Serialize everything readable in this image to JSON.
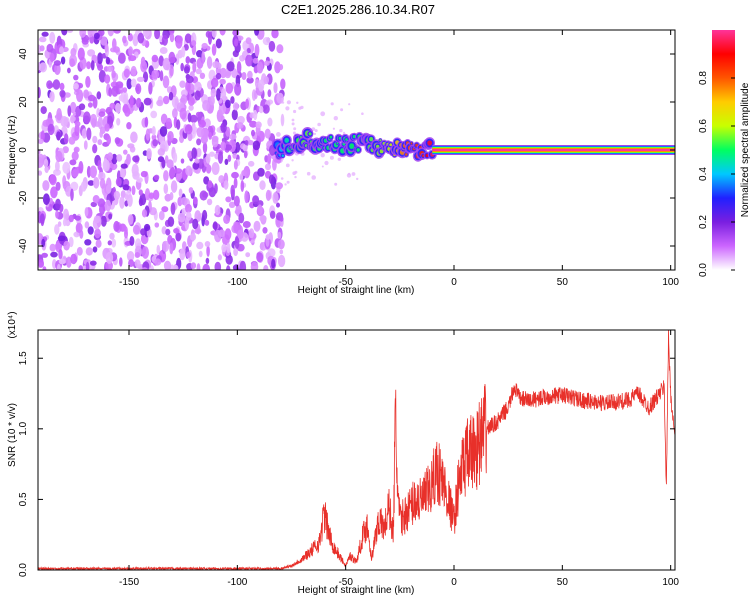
{
  "page_title": "C2E1.2025.286.10.34.R07",
  "colors": {
    "snr_line": "#e8302a",
    "spec_band": "#c8102e",
    "scatter": "#7a1fe0"
  },
  "chart_data": [
    {
      "type": "heatmap",
      "title": "C2E1.2025.286.10.34.R07",
      "xlabel": "Height of straight line (km)",
      "ylabel": "Frequency (Hz)",
      "xlim": [
        -192,
        102
      ],
      "ylim": [
        -50,
        50
      ],
      "xticks": [
        -150,
        -100,
        -50,
        0,
        50,
        100
      ],
      "yticks": [
        -40,
        -20,
        0,
        20,
        40
      ],
      "colorbar": {
        "label": "Normalized spectral amplitude",
        "range": [
          0.0,
          1.0
        ],
        "ticks": [
          "0.0",
          "0.2",
          "0.4",
          "0.6",
          "0.8"
        ],
        "colormap": [
          "#ffffff",
          "#cc66ff",
          "#7a1fe0",
          "#2020ff",
          "#00c8ff",
          "#00ff60",
          "#c8ff00",
          "#ffcc00",
          "#ff5500",
          "#ff0000",
          "#ff3399"
        ]
      },
      "noise_region": {
        "x_range": [
          -192,
          -82
        ],
        "level": 0.15
      },
      "ridge": [
        {
          "x": -82,
          "f": -1,
          "amp": 0.35
        },
        {
          "x": -75,
          "f": 2,
          "amp": 0.5
        },
        {
          "x": -68,
          "f": 4,
          "amp": 0.55
        },
        {
          "x": -60,
          "f": 3,
          "amp": 0.5
        },
        {
          "x": -52,
          "f": 2,
          "amp": 0.5
        },
        {
          "x": -45,
          "f": 3,
          "amp": 0.5
        },
        {
          "x": -38,
          "f": 2,
          "amp": 0.55
        },
        {
          "x": -30,
          "f": 1,
          "amp": 0.6
        },
        {
          "x": -22,
          "f": 0.5,
          "amp": 0.8
        },
        {
          "x": -15,
          "f": 0.5,
          "amp": 0.85
        },
        {
          "x": -10,
          "f": 0,
          "amp": 0.95
        },
        {
          "x": 0,
          "f": 0,
          "amp": 1.0
        },
        {
          "x": 50,
          "f": 0,
          "amp": 1.0
        },
        {
          "x": 95,
          "f": 0,
          "amp": 0.95
        },
        {
          "x": 102,
          "f": 0,
          "amp": 0.7
        }
      ]
    },
    {
      "type": "line",
      "xlabel": "Height of straight line (km)",
      "ylabel": "SNR (10 * v/v)",
      "y_multiplier_label": "(x10⁴)",
      "xlim": [
        -192,
        102
      ],
      "ylim": [
        0,
        1.7
      ],
      "xticks": [
        -150,
        -100,
        -50,
        0,
        50,
        100
      ],
      "yticks": [
        "0.0",
        "0.5",
        "1.0",
        "1.5"
      ],
      "series": [
        {
          "name": "SNR",
          "x": [
            -192,
            -150,
            -100,
            -80,
            -75,
            -70,
            -65,
            -62,
            -60,
            -57,
            -55,
            -50,
            -48,
            -45,
            -42,
            -40,
            -38,
            -35,
            -32,
            -30,
            -28,
            -27,
            -26,
            -25,
            -22,
            -20,
            -18,
            -15,
            -10,
            -8,
            -5,
            -3,
            0,
            2,
            5,
            10,
            15,
            20,
            25,
            28,
            30,
            35,
            40,
            50,
            60,
            70,
            80,
            85,
            90,
            95,
            97,
            98,
            99,
            100,
            102
          ],
          "values": [
            0.01,
            0.01,
            0.01,
            0.01,
            0.03,
            0.08,
            0.15,
            0.2,
            0.4,
            0.22,
            0.15,
            0.03,
            0.1,
            0.06,
            0.25,
            0.32,
            0.08,
            0.35,
            0.3,
            0.45,
            0.25,
            1.1,
            0.55,
            0.35,
            0.4,
            0.45,
            0.5,
            0.48,
            0.6,
            0.72,
            0.62,
            0.52,
            0.35,
            0.6,
            0.78,
            0.85,
            1.0,
            1.05,
            1.15,
            1.3,
            1.22,
            1.2,
            1.22,
            1.24,
            1.2,
            1.18,
            1.2,
            1.25,
            1.15,
            1.25,
            1.3,
            0.58,
            1.65,
            1.25,
            0.92
          ]
        }
      ]
    }
  ]
}
